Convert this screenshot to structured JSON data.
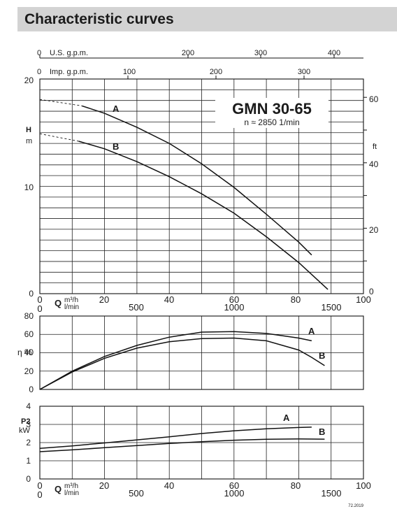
{
  "page": {
    "title": "Characteristic curves"
  },
  "model": {
    "name": "GMN 30-65",
    "speed": "n ≈ 2850 1/min"
  },
  "footer": {
    "code": "72.2019"
  },
  "axes": {
    "us_gpm": {
      "label": "U.S. g.p.m.",
      "ticks": [
        "0",
        "200",
        "300",
        "400"
      ]
    },
    "imp_gpm": {
      "label": "Imp. g.p.m.",
      "ticks": [
        "0",
        "100",
        "200",
        "300"
      ]
    },
    "q_m3h": {
      "label": "m³/h",
      "ticks": [
        "0",
        "20",
        "40",
        "60",
        "80",
        "100"
      ]
    },
    "q_lmin": {
      "label": "l/min",
      "ticks": [
        "500",
        "1000",
        "1500"
      ]
    },
    "q_symbol": "Q",
    "head": {
      "label_top": "H",
      "label_bottom": "m",
      "ticks": [
        "20",
        "10",
        "0"
      ]
    },
    "head_ft": {
      "label": "ft",
      "ticks": [
        "60",
        "40",
        "20",
        "0"
      ]
    },
    "eff": {
      "label": "η %",
      "ticks": [
        "80",
        "60",
        "40",
        "20",
        "0"
      ]
    },
    "power": {
      "label_top": "P2",
      "label_bottom": "kW",
      "ticks": [
        "4",
        "3",
        "2",
        "1",
        "0"
      ]
    }
  },
  "chart_data": [
    {
      "type": "line",
      "title": "",
      "xlabel": "Q m³/h",
      "ylabel": "H m",
      "xlim": [
        0,
        100
      ],
      "ylim": [
        0,
        20
      ],
      "secondary_ylabel": "ft",
      "secondary_ylim": [
        0,
        65.6
      ],
      "series": [
        {
          "name": "A",
          "x": [
            13,
            20,
            30,
            40,
            50,
            60,
            70,
            80,
            84
          ],
          "y": [
            17.5,
            16.8,
            15.5,
            14.0,
            12.1,
            9.9,
            7.4,
            4.8,
            3.6
          ]
        },
        {
          "name": "B",
          "x": [
            12,
            20,
            30,
            40,
            50,
            60,
            70,
            80,
            89
          ],
          "y": [
            14.2,
            13.5,
            12.3,
            10.9,
            9.3,
            7.5,
            5.3,
            2.9,
            0.4
          ]
        }
      ],
      "extrapolated": [
        {
          "name": "A",
          "x": [
            0,
            13
          ],
          "y": [
            18.1,
            17.5
          ]
        },
        {
          "name": "B",
          "x": [
            0,
            12
          ],
          "y": [
            14.9,
            14.2
          ]
        }
      ]
    },
    {
      "type": "line",
      "title": "",
      "xlabel": "Q m³/h",
      "ylabel": "η %",
      "xlim": [
        0,
        100
      ],
      "ylim": [
        0,
        80
      ],
      "series": [
        {
          "name": "A",
          "x": [
            0,
            10,
            20,
            30,
            40,
            50,
            60,
            70,
            80,
            84
          ],
          "y": [
            0,
            20,
            36,
            48,
            57,
            62.5,
            63,
            61,
            56,
            53
          ]
        },
        {
          "name": "B",
          "x": [
            0,
            10,
            20,
            30,
            40,
            50,
            60,
            70,
            80,
            84,
            88
          ],
          "y": [
            0,
            19,
            34,
            45,
            52,
            55.5,
            56,
            53,
            43,
            35,
            26
          ]
        }
      ]
    },
    {
      "type": "line",
      "title": "",
      "xlabel": "Q m³/h",
      "ylabel": "P2 kW",
      "xlim": [
        0,
        100
      ],
      "ylim": [
        0,
        4
      ],
      "series": [
        {
          "name": "A",
          "x": [
            0,
            10,
            20,
            30,
            40,
            50,
            60,
            70,
            80,
            84
          ],
          "y": [
            1.68,
            1.82,
            1.98,
            2.15,
            2.32,
            2.5,
            2.65,
            2.76,
            2.83,
            2.85
          ]
        },
        {
          "name": "B",
          "x": [
            0,
            10,
            20,
            30,
            40,
            50,
            60,
            70,
            80,
            88
          ],
          "y": [
            1.5,
            1.6,
            1.72,
            1.84,
            1.95,
            2.05,
            2.13,
            2.18,
            2.2,
            2.19
          ]
        }
      ]
    }
  ]
}
